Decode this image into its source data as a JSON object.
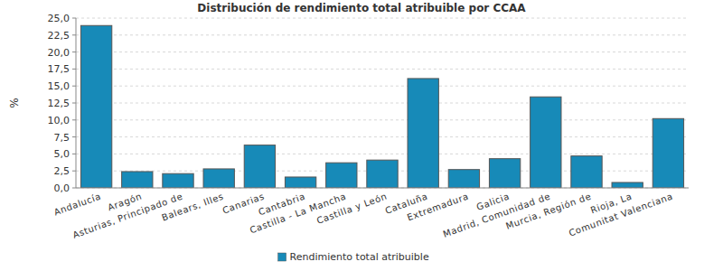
{
  "chart_data": {
    "type": "bar",
    "title": "Distribución de rendimiento total atribuible por CCAA",
    "y_label": "%",
    "categories": [
      "Andalucía",
      "Aragón",
      "Asturias, Principado de",
      "Balears, Illes",
      "Canarias",
      "Cantabria",
      "Castilla - La Mancha",
      "Castilla y León",
      "Cataluña",
      "Extremadura",
      "Galicia",
      "Madrid, Comunidad de",
      "Murcia, Región de",
      "Rioja, La",
      "Comunitat Valenciana"
    ],
    "series": [
      {
        "name": "Rendimiento total atribuible",
        "color": "#178ab8",
        "values": [
          23.9,
          2.4,
          2.1,
          2.8,
          6.3,
          1.6,
          3.7,
          4.1,
          16.1,
          2.7,
          4.3,
          13.4,
          4.7,
          0.8,
          10.2
        ]
      }
    ],
    "ylim": [
      0,
      25
    ],
    "yticks": [
      {
        "value": 0,
        "label": "0,0"
      },
      {
        "value": 2.5,
        "label": "2,5"
      },
      {
        "value": 5,
        "label": "5,0"
      },
      {
        "value": 7.5,
        "label": "7,5"
      },
      {
        "value": 10,
        "label": "10,0"
      },
      {
        "value": 12.5,
        "label": "12,5"
      },
      {
        "value": 15,
        "label": "15,0"
      },
      {
        "value": 17.5,
        "label": "17,5"
      },
      {
        "value": 20,
        "label": "20,0"
      },
      {
        "value": 22.5,
        "label": "22,5"
      },
      {
        "value": 25,
        "label": "25,0"
      }
    ],
    "grid": true,
    "legend": "bottom"
  }
}
